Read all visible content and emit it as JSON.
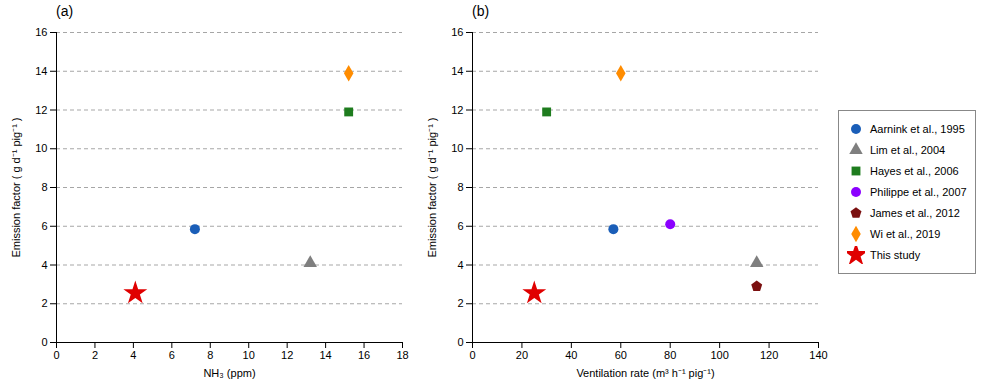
{
  "chart_data": [
    {
      "type": "scatter",
      "title": "(a)",
      "x_label": "NH₃ (ppm)",
      "y_label": "Emission factor ( g d⁻¹ pig⁻¹ )",
      "xlim": [
        0,
        18
      ],
      "ylim": [
        0,
        16
      ],
      "xticks": [
        0,
        2,
        4,
        6,
        8,
        10,
        12,
        14,
        16,
        18
      ],
      "yticks": [
        0,
        2,
        4,
        6,
        8,
        10,
        12,
        14,
        16
      ],
      "grid": "y",
      "series": [
        {
          "name": "Aarnink et al., 1995",
          "color": "#1a5eb8",
          "marker": "circle",
          "x": [
            7.2
          ],
          "values": [
            5.85
          ]
        },
        {
          "name": "Lim et al., 2004",
          "color": "#7f7f7f",
          "marker": "triangle",
          "x": [
            13.2
          ],
          "values": [
            4.1
          ]
        },
        {
          "name": "Hayes et al., 2006",
          "color": "#1e7c1e",
          "marker": "square",
          "x": [
            15.2
          ],
          "values": [
            11.9
          ]
        },
        {
          "name": "Wi et al., 2019",
          "color": "#ff8c00",
          "marker": "diamond",
          "x": [
            15.2
          ],
          "values": [
            13.9
          ]
        },
        {
          "name": "This study",
          "color": "#e00000",
          "marker": "star",
          "x": [
            4.1
          ],
          "values": [
            2.55
          ]
        }
      ]
    },
    {
      "type": "scatter",
      "title": "(b)",
      "x_label": "Ventilation rate (m³ h⁻¹ pig⁻¹)",
      "y_label": "Emission factor ( g d⁻¹ pig⁻¹ )",
      "xlim": [
        0,
        140
      ],
      "ylim": [
        0,
        16
      ],
      "xticks": [
        0,
        20,
        40,
        60,
        80,
        100,
        120,
        140
      ],
      "yticks": [
        0,
        2,
        4,
        6,
        8,
        10,
        12,
        14,
        16
      ],
      "grid": "y",
      "legend": "right",
      "series": [
        {
          "name": "Aarnink et al., 1995",
          "color": "#1a5eb8",
          "marker": "circle",
          "x": [
            57
          ],
          "values": [
            5.85
          ]
        },
        {
          "name": "Lim et al., 2004",
          "color": "#7f7f7f",
          "marker": "triangle",
          "x": [
            115
          ],
          "values": [
            4.1
          ]
        },
        {
          "name": "Hayes et al., 2006",
          "color": "#1e7c1e",
          "marker": "square",
          "x": [
            30
          ],
          "values": [
            11.9
          ]
        },
        {
          "name": "Philippe et al., 2007",
          "color": "#8b00ff",
          "marker": "circle",
          "x": [
            80
          ],
          "values": [
            6.1
          ]
        },
        {
          "name": "James et al., 2012",
          "color": "#7b1010",
          "marker": "pentagon",
          "x": [
            115
          ],
          "values": [
            2.9
          ]
        },
        {
          "name": "Wi et al., 2019",
          "color": "#ff8c00",
          "marker": "diamond",
          "x": [
            60
          ],
          "values": [
            13.9
          ]
        },
        {
          "name": "This study",
          "color": "#e00000",
          "marker": "star",
          "x": [
            25
          ],
          "values": [
            2.55
          ]
        }
      ]
    }
  ]
}
